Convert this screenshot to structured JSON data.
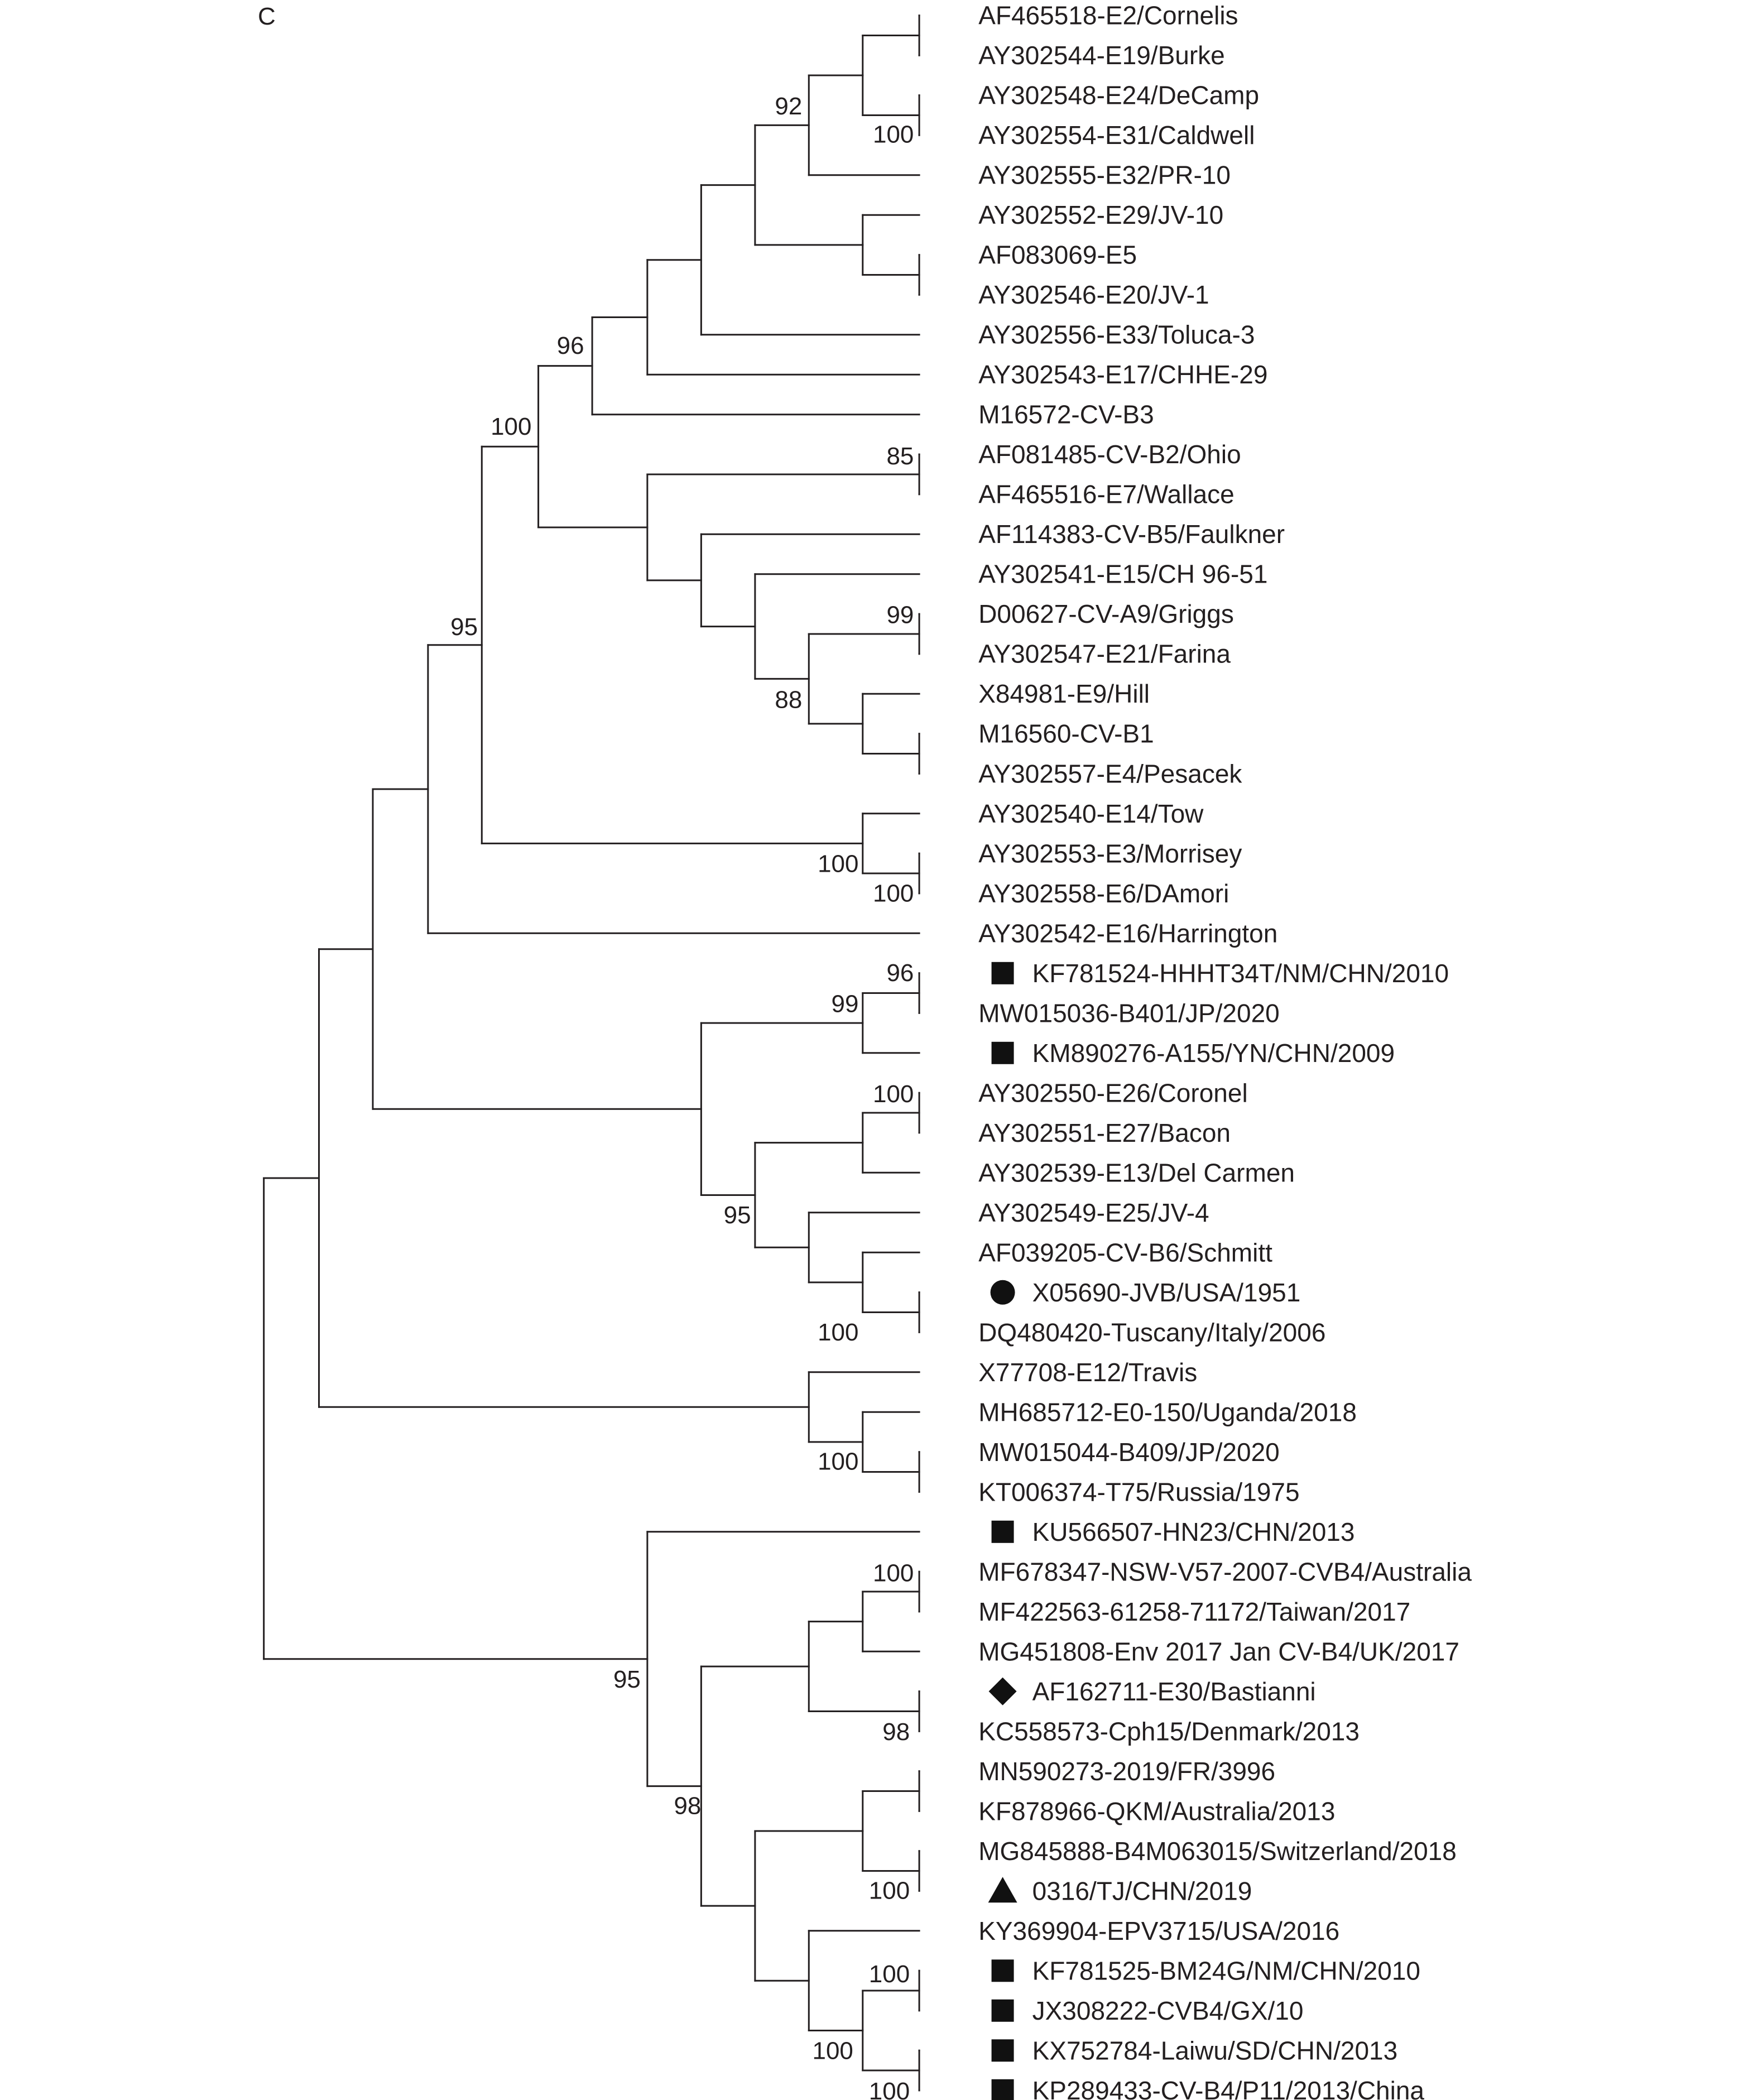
{
  "panel_label": "C",
  "colors": {
    "ink": "#231f20",
    "marker": "#111111",
    "background": "#ffffff"
  },
  "taxa": [
    {
      "label": "AF465518-E2/Cornelis",
      "marker": ""
    },
    {
      "label": "AY302544-E19/Burke",
      "marker": ""
    },
    {
      "label": "AY302548-E24/DeCamp",
      "marker": ""
    },
    {
      "label": "AY302554-E31/Caldwell",
      "marker": ""
    },
    {
      "label": "AY302555-E32/PR-10",
      "marker": ""
    },
    {
      "label": "AY302552-E29/JV-10",
      "marker": ""
    },
    {
      "label": "AF083069-E5",
      "marker": ""
    },
    {
      "label": "AY302546-E20/JV-1",
      "marker": ""
    },
    {
      "label": "AY302556-E33/Toluca-3",
      "marker": ""
    },
    {
      "label": "AY302543-E17/CHHE-29",
      "marker": ""
    },
    {
      "label": "M16572-CV-B3",
      "marker": ""
    },
    {
      "label": "AF081485-CV-B2/Ohio",
      "marker": ""
    },
    {
      "label": "AF465516-E7/Wallace",
      "marker": ""
    },
    {
      "label": "AF114383-CV-B5/Faulkner",
      "marker": ""
    },
    {
      "label": "AY302541-E15/CH 96-51",
      "marker": ""
    },
    {
      "label": "D00627-CV-A9/Griggs",
      "marker": ""
    },
    {
      "label": "AY302547-E21/Farina",
      "marker": ""
    },
    {
      "label": "X84981-E9/Hill",
      "marker": ""
    },
    {
      "label": "M16560-CV-B1",
      "marker": ""
    },
    {
      "label": "AY302557-E4/Pesacek",
      "marker": ""
    },
    {
      "label": "AY302540-E14/Tow",
      "marker": ""
    },
    {
      "label": "AY302553-E3/Morrisey",
      "marker": ""
    },
    {
      "label": "AY302558-E6/DAmori",
      "marker": ""
    },
    {
      "label": "AY302542-E16/Harrington",
      "marker": ""
    },
    {
      "label": "KF781524-HHHT34T/NM/CHN/2010",
      "marker": "square"
    },
    {
      "label": "MW015036-B401/JP/2020",
      "marker": ""
    },
    {
      "label": "KM890276-A155/YN/CHN/2009",
      "marker": "square"
    },
    {
      "label": "AY302550-E26/Coronel",
      "marker": ""
    },
    {
      "label": "AY302551-E27/Bacon",
      "marker": ""
    },
    {
      "label": "AY302539-E13/Del Carmen",
      "marker": ""
    },
    {
      "label": "AY302549-E25/JV-4",
      "marker": ""
    },
    {
      "label": "AF039205-CV-B6/Schmitt",
      "marker": ""
    },
    {
      "label": "X05690-JVB/USA/1951",
      "marker": "circle"
    },
    {
      "label": "DQ480420-Tuscany/Italy/2006",
      "marker": ""
    },
    {
      "label": "X77708-E12/Travis",
      "marker": ""
    },
    {
      "label": "MH685712-E0-150/Uganda/2018",
      "marker": ""
    },
    {
      "label": "MW015044-B409/JP/2020",
      "marker": ""
    },
    {
      "label": "KT006374-T75/Russia/1975",
      "marker": ""
    },
    {
      "label": "KU566507-HN23/CHN/2013",
      "marker": "square"
    },
    {
      "label": "MF678347-NSW-V57-2007-CVB4/Australia",
      "marker": ""
    },
    {
      "label": "MF422563-61258-71172/Taiwan/2017",
      "marker": ""
    },
    {
      "label": "MG451808-Env 2017 Jan CV-B4/UK/2017",
      "marker": ""
    },
    {
      "label": "AF162711-E30/Bastianni",
      "marker": "diamond"
    },
    {
      "label": "KC558573-Cph15/Denmark/2013",
      "marker": ""
    },
    {
      "label": "MN590273-2019/FR/3996",
      "marker": ""
    },
    {
      "label": "KF878966-QKM/Australia/2013",
      "marker": ""
    },
    {
      "label": "MG845888-B4M063015/Switzerland/2018",
      "marker": ""
    },
    {
      "label": "0316/TJ/CHN/2019",
      "marker": "triangle"
    },
    {
      "label": "KY369904-EPV3715/USA/2016",
      "marker": ""
    },
    {
      "label": "KF781525-BM24G/NM/CHN/2010",
      "marker": "square"
    },
    {
      "label": "JX308222-CVB4/GX/10",
      "marker": "square"
    },
    {
      "label": "KX752784-Laiwu/SD/CHN/2013",
      "marker": "square"
    },
    {
      "label": "KP289433-CV-B4/P11/2013/China",
      "marker": "square"
    }
  ],
  "bootstrap_values": [
    "92",
    "100",
    "96",
    "100",
    "85",
    "95",
    "99",
    "88",
    "100",
    "100",
    "96",
    "99",
    "100",
    "95",
    "100",
    "100",
    "100",
    "98",
    "95",
    "98",
    "100",
    "100",
    "100",
    "100"
  ]
}
